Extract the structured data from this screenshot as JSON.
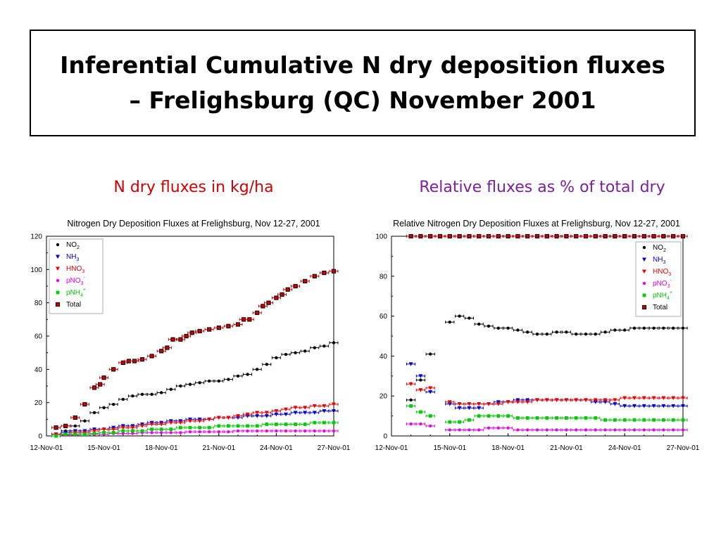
{
  "title": {
    "line1": "Inferential Cumulative N dry deposition fluxes",
    "line2": "– Frelighsburg (QC)  November 2001"
  },
  "subheadings": {
    "left": "N dry fluxes in kg/ha",
    "right": "Relative fluxes as % of total dry"
  },
  "colors": {
    "NO2": "#000000",
    "NH3": "#0000dd",
    "HNO3": "#ee0000",
    "pNO3": "#ee00ee",
    "pNH4": "#00cc00",
    "Total_fill": "#cc0000",
    "Total_edge": "#000000"
  },
  "legend_items": [
    {
      "key": "NO2",
      "base": "NO",
      "sub": "2",
      "sup": "",
      "color": "#000000",
      "marker": "circle"
    },
    {
      "key": "NH3",
      "base": "NH",
      "sub": "3",
      "sup": "",
      "color": "#0000dd",
      "marker": "triangle-down"
    },
    {
      "key": "HNO3",
      "base": "HNO",
      "sub": "3",
      "sup": "",
      "color": "#ee0000",
      "marker": "triangle-down"
    },
    {
      "key": "pNO3",
      "base": "pNO",
      "sub": "3",
      "sup": "-",
      "color": "#ee00ee",
      "marker": "circle"
    },
    {
      "key": "pNH4",
      "base": "pNH",
      "sub": "4",
      "sup": "+",
      "color": "#00cc00",
      "marker": "square"
    },
    {
      "key": "Total",
      "base": "Total",
      "sub": "",
      "sup": "",
      "color": "#cc0000",
      "marker": "square"
    }
  ],
  "chart_data": [
    {
      "type": "scatter",
      "title": "Nitrogen Dry Deposition Fluxes at Frelighsburg, Nov 12-27, 2001",
      "xlabel": "",
      "ylabel": "",
      "xlim": [
        0,
        15
      ],
      "ylim": [
        0,
        120
      ],
      "yticks": [
        0,
        20,
        40,
        60,
        80,
        100,
        120
      ],
      "xtick_labels": [
        "12-Nov-01",
        "15-Nov-01",
        "18-Nov-01",
        "21-Nov-01",
        "24-Nov-01",
        "27-Nov-01"
      ],
      "xtick_values": [
        0,
        3,
        6,
        9,
        12,
        15
      ],
      "legend": "top-left",
      "grid": false,
      "series": [
        {
          "name": "NO2",
          "x": [
            0.5,
            1.0,
            1.5,
            2.0,
            2.5,
            3.0,
            3.5,
            4.0,
            4.5,
            5.0,
            5.5,
            6.0,
            6.5,
            7.0,
            7.5,
            8.0,
            8.5,
            9.0,
            9.5,
            10.0,
            10.5,
            11.0,
            11.5,
            12.0,
            12.5,
            13.0,
            13.5,
            14.0,
            14.5,
            15.0
          ],
          "y": [
            1,
            3,
            6,
            9,
            14,
            17,
            19,
            22,
            24,
            25,
            25,
            26,
            28,
            30,
            31,
            32,
            33,
            33,
            34,
            36,
            37,
            40,
            43,
            47,
            49,
            50,
            51,
            53,
            54,
            56
          ]
        },
        {
          "name": "NH3",
          "x": [
            0.5,
            1.0,
            1.5,
            2.0,
            2.5,
            3.0,
            3.5,
            4.0,
            4.5,
            5.0,
            5.5,
            6.0,
            6.5,
            7.0,
            7.5,
            8.0,
            8.5,
            9.0,
            9.5,
            10.0,
            10.5,
            11.0,
            11.5,
            12.0,
            12.5,
            13.0,
            13.5,
            14.0,
            14.5,
            15.0
          ],
          "y": [
            1,
            2,
            3,
            3,
            4,
            4,
            5,
            6,
            6,
            7,
            8,
            8,
            9,
            9,
            10,
            10,
            10,
            11,
            11,
            11,
            12,
            12,
            12,
            13,
            13,
            14,
            14,
            14,
            15,
            15
          ]
        },
        {
          "name": "HNO3",
          "x": [
            0.5,
            1.0,
            1.5,
            2.0,
            2.5,
            3.0,
            3.5,
            4.0,
            4.5,
            5.0,
            5.5,
            6.0,
            6.5,
            7.0,
            7.5,
            8.0,
            8.5,
            9.0,
            9.5,
            10.0,
            10.5,
            11.0,
            11.5,
            12.0,
            12.5,
            13.0,
            13.5,
            14.0,
            14.5,
            15.0
          ],
          "y": [
            1,
            1,
            2,
            2,
            3,
            4,
            4,
            5,
            5,
            6,
            7,
            7,
            8,
            8,
            9,
            9,
            10,
            11,
            11,
            12,
            13,
            14,
            14,
            15,
            16,
            17,
            17,
            18,
            18,
            19
          ]
        },
        {
          "name": "pNO3",
          "x": [
            0.5,
            1.0,
            1.5,
            2.0,
            2.5,
            3.0,
            3.5,
            4.0,
            4.5,
            5.0,
            5.5,
            6.0,
            6.5,
            7.0,
            7.5,
            8.0,
            8.5,
            9.0,
            9.5,
            10.0,
            10.5,
            11.0,
            11.5,
            12.0,
            12.5,
            13.0,
            13.5,
            14.0,
            14.5,
            15.0
          ],
          "y": [
            0,
            0.5,
            0.5,
            1,
            1,
            1,
            1.5,
            1.5,
            1.5,
            2,
            2,
            2,
            2,
            2,
            2.5,
            2.5,
            2.5,
            2.5,
            2.5,
            3,
            3,
            3,
            3,
            3,
            3,
            3,
            3,
            3,
            3,
            3
          ]
        },
        {
          "name": "pNH4",
          "x": [
            0.5,
            1.0,
            1.5,
            2.0,
            2.5,
            3.0,
            3.5,
            4.0,
            4.5,
            5.0,
            5.5,
            6.0,
            6.5,
            7.0,
            7.5,
            8.0,
            8.5,
            9.0,
            9.5,
            10.0,
            10.5,
            11.0,
            11.5,
            12.0,
            12.5,
            13.0,
            13.5,
            14.0,
            14.5,
            15.0
          ],
          "y": [
            0,
            1,
            1,
            1,
            1.5,
            2,
            2,
            3,
            3,
            3,
            4,
            4,
            4,
            5,
            5,
            5,
            5,
            6,
            6,
            6,
            6,
            6,
            7,
            7,
            7,
            7,
            7,
            8,
            8,
            8
          ]
        },
        {
          "name": "Total",
          "x": [
            0.5,
            1.0,
            1.5,
            2.0,
            2.5,
            2.8,
            3.0,
            3.5,
            4.0,
            4.3,
            4.6,
            5.0,
            5.5,
            6.0,
            6.3,
            6.6,
            7.0,
            7.3,
            7.6,
            8.0,
            8.5,
            9.0,
            9.5,
            10.0,
            10.3,
            10.6,
            11.0,
            11.3,
            11.6,
            12.0,
            12.3,
            12.6,
            13.0,
            13.5,
            14.0,
            14.5,
            15.0
          ],
          "y": [
            5,
            6,
            11,
            19,
            29,
            31,
            35,
            40,
            44,
            45,
            45,
            46,
            48,
            51,
            53,
            58,
            58,
            60,
            62,
            63,
            64,
            65,
            66,
            67,
            70,
            70,
            74,
            78,
            80,
            83,
            85,
            88,
            90,
            93,
            96,
            98,
            99
          ]
        }
      ]
    },
    {
      "type": "scatter",
      "title": "Relative Nitrogen Dry Deposition Fluxes at Frelighsburg, Nov 12-27, 2001",
      "xlabel": "",
      "ylabel": "",
      "xlim": [
        0,
        15
      ],
      "ylim": [
        0,
        100
      ],
      "yticks": [
        0,
        20,
        40,
        60,
        80,
        100
      ],
      "xtick_labels": [
        "12-Nov-01",
        "15-Nov-01",
        "18-Nov-01",
        "21-Nov-01",
        "24-Nov-01",
        "27-Nov-01"
      ],
      "xtick_values": [
        0,
        3,
        6,
        9,
        12,
        15
      ],
      "legend": "top-right",
      "grid": false,
      "series": [
        {
          "name": "NO2",
          "x": [
            1.0,
            1.5,
            2.0,
            3.0,
            3.5,
            4.0,
            4.5,
            5.0,
            5.5,
            6.0,
            6.5,
            7.0,
            7.5,
            8.0,
            8.5,
            9.0,
            9.5,
            10.0,
            10.5,
            11.0,
            11.5,
            12.0,
            12.5,
            13.0,
            13.5,
            14.0,
            14.5,
            15.0
          ],
          "y": [
            18,
            28,
            41,
            57,
            60,
            59,
            56,
            55,
            54,
            54,
            53,
            52,
            51,
            51,
            52,
            52,
            51,
            51,
            51,
            52,
            53,
            53,
            54,
            54,
            54,
            54,
            54,
            54
          ]
        },
        {
          "name": "NH3",
          "x": [
            1.0,
            1.5,
            2.0,
            3.0,
            3.5,
            4.0,
            4.5,
            5.0,
            5.5,
            6.0,
            6.5,
            7.0,
            7.5,
            8.0,
            8.5,
            9.0,
            9.5,
            10.0,
            10.5,
            11.0,
            11.5,
            12.0,
            12.5,
            13.0,
            13.5,
            14.0,
            14.5,
            15.0
          ],
          "y": [
            36,
            30,
            22,
            16,
            14,
            14,
            14,
            16,
            17,
            17,
            18,
            18,
            18,
            18,
            18,
            18,
            18,
            18,
            17,
            17,
            16,
            15,
            15,
            15,
            15,
            15,
            15,
            15
          ]
        },
        {
          "name": "HNO3",
          "x": [
            1.0,
            1.5,
            2.0,
            3.0,
            3.5,
            4.0,
            4.5,
            5.0,
            5.5,
            6.0,
            6.5,
            7.0,
            7.5,
            8.0,
            8.5,
            9.0,
            9.5,
            10.0,
            10.5,
            11.0,
            11.5,
            12.0,
            12.5,
            13.0,
            13.5,
            14.0,
            14.5,
            15.0
          ],
          "y": [
            26,
            23,
            24,
            17,
            16,
            16,
            16,
            16,
            16,
            17,
            17,
            17,
            18,
            18,
            18,
            18,
            18,
            18,
            18,
            18,
            18,
            19,
            19,
            19,
            19,
            19,
            19,
            19
          ]
        },
        {
          "name": "pNO3",
          "x": [
            1.0,
            1.5,
            2.0,
            3.0,
            3.5,
            4.0,
            4.5,
            5.0,
            5.5,
            6.0,
            6.5,
            7.0,
            7.5,
            8.0,
            8.5,
            9.0,
            9.5,
            10.0,
            10.5,
            11.0,
            11.5,
            12.0,
            12.5,
            13.0,
            13.5,
            14.0,
            14.5,
            15.0
          ],
          "y": [
            6,
            6,
            5,
            3,
            3,
            3,
            3,
            4,
            4,
            4,
            3,
            3,
            3,
            3,
            3,
            3,
            3,
            3,
            3,
            3,
            3,
            3,
            3,
            3,
            3,
            3,
            3,
            3
          ]
        },
        {
          "name": "pNH4",
          "x": [
            1.0,
            1.5,
            2.0,
            3.0,
            3.5,
            4.0,
            4.5,
            5.0,
            5.5,
            6.0,
            6.5,
            7.0,
            7.5,
            8.0,
            8.5,
            9.0,
            9.5,
            10.0,
            10.5,
            11.0,
            11.5,
            12.0,
            12.5,
            13.0,
            13.5,
            14.0,
            14.5,
            15.0
          ],
          "y": [
            15,
            12,
            10,
            7,
            7,
            8,
            10,
            10,
            10,
            10,
            9,
            9,
            9,
            9,
            9,
            9,
            9,
            9,
            9,
            8,
            8,
            8,
            8,
            8,
            8,
            8,
            8,
            8
          ]
        },
        {
          "name": "Total",
          "x": [
            1.0,
            1.5,
            2.0,
            2.5,
            3.0,
            3.5,
            4.0,
            4.5,
            5.0,
            5.5,
            6.0,
            6.5,
            7.0,
            7.5,
            8.0,
            8.5,
            9.0,
            9.5,
            10.0,
            10.5,
            11.0,
            11.5,
            12.0,
            12.5,
            13.0,
            13.5,
            14.0,
            14.5,
            15.0
          ],
          "y": [
            100,
            100,
            100,
            100,
            100,
            100,
            100,
            100,
            100,
            100,
            100,
            100,
            100,
            100,
            100,
            100,
            100,
            100,
            100,
            100,
            100,
            100,
            100,
            100,
            100,
            100,
            100,
            100,
            100
          ]
        }
      ]
    }
  ]
}
